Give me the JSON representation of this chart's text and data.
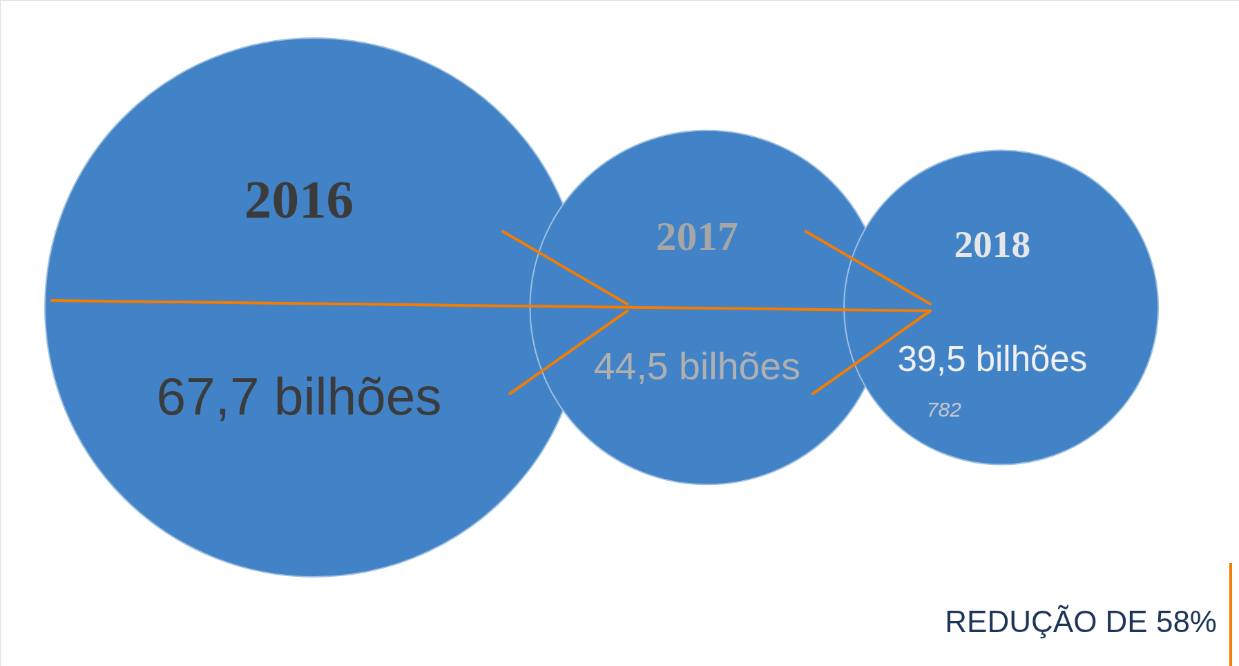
{
  "chart_data": {
    "type": "other",
    "categories": [
      "2016",
      "2017",
      "2018"
    ],
    "values": [
      67.7,
      44.5,
      39.5
    ],
    "value_labels": [
      "67,7 bilhões",
      "44,5 bilhões",
      "39,5 bilhões"
    ],
    "colors": [
      "#4283c8",
      "#4283c8",
      "#4283c8"
    ],
    "annotations": [
      "782",
      "REDUÇÃO DE 58%"
    ]
  }
}
